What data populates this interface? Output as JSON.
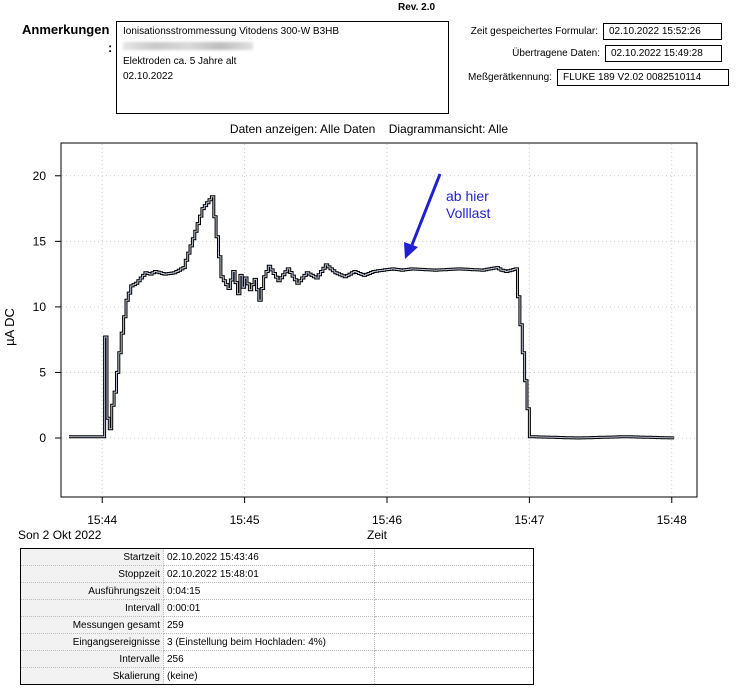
{
  "header": {
    "rev": "Rev. 2.0",
    "anmerkungen_label": "Anmerkungen",
    "anmerkungen_colon": ":",
    "notes": {
      "line1": "Ionisationsstrommessung Vitodens 300-W B3HB",
      "line3": "Elektroden ca. 5 Jahre alt",
      "line4": "02.10.2022"
    },
    "meta": [
      {
        "label": "Zeit gespeichertes Formular:",
        "value": "02.10.2022 15:52:26"
      },
      {
        "label": "Übertragene Daten:",
        "value": "02.10.2022 15:49:28"
      },
      {
        "label": "Meßgerätkennung:",
        "value": "FLUKE 189   V2.02  0082510114"
      }
    ]
  },
  "view": {
    "daten_label": "Daten anzeigen:",
    "daten_value": "Alle Daten",
    "ansicht_label": "Diagrammansicht:",
    "ansicht_value": "Alle"
  },
  "chart_data": {
    "type": "line",
    "ylabel": "µA DC",
    "xlabel": "Zeit",
    "date_label": "Son 2 Okt 2022",
    "ylim": [
      -4.5,
      22.5
    ],
    "yticks": [
      0,
      5,
      10,
      15,
      20
    ],
    "xlim": [
      "15:43:46",
      "15:48:06"
    ],
    "xticks": [
      "15:44",
      "15:45",
      "15:46",
      "15:47",
      "15:48"
    ],
    "annotation": {
      "text_line1": "ab hier",
      "text_line2": "Volllast",
      "color": "#1f1fd6"
    },
    "series": [
      {
        "x": [
          "15:43:46",
          "15:44:00",
          "15:44:01",
          "15:44:02",
          "15:44:03",
          "15:44:04",
          "15:44:05",
          "15:44:06",
          "15:44:08",
          "15:44:10",
          "15:44:12",
          "15:44:14",
          "15:44:16",
          "15:44:18",
          "15:44:20",
          "15:44:22",
          "15:44:26",
          "15:44:30",
          "15:44:34",
          "15:44:38",
          "15:44:42",
          "15:44:46",
          "15:44:50",
          "15:44:53",
          "15:44:55",
          "15:44:57",
          "15:44:58",
          "15:44:59",
          "15:45:00",
          "15:45:02",
          "15:45:04",
          "15:45:06",
          "15:45:08",
          "15:45:10",
          "15:45:14",
          "15:45:18",
          "15:45:22",
          "15:45:26",
          "15:45:30",
          "15:45:34",
          "15:45:38",
          "15:45:42",
          "15:45:46",
          "15:45:50",
          "15:45:54",
          "15:45:58",
          "15:46:02",
          "15:46:06",
          "15:46:10",
          "15:46:20",
          "15:46:30",
          "15:46:40",
          "15:46:46",
          "15:46:48",
          "15:46:50",
          "15:46:54",
          "15:47:00",
          "15:47:20",
          "15:47:40",
          "15:48:01"
        ],
        "y": [
          0.1,
          0.1,
          7.7,
          1.5,
          0.7,
          2.5,
          3.5,
          5.0,
          8.0,
          10.5,
          11.6,
          11.8,
          12.2,
          12.6,
          12.5,
          12.7,
          12.5,
          12.6,
          13.0,
          15.2,
          17.5,
          18.4,
          12.3,
          11.4,
          12.7,
          11.0,
          12.4,
          11.5,
          12.2,
          11.3,
          12.1,
          10.5,
          12.3,
          13.1,
          12.0,
          12.9,
          11.8,
          12.6,
          12.2,
          13.2,
          12.6,
          12.3,
          12.7,
          12.4,
          12.7,
          12.8,
          12.9,
          12.8,
          12.9,
          12.8,
          12.9,
          12.8,
          13.0,
          12.8,
          12.7,
          12.9,
          0.1,
          0.0,
          0.1,
          0.0
        ]
      }
    ]
  },
  "info_table": [
    {
      "key": "Startzeit",
      "value": "02.10.2022 15:43:46"
    },
    {
      "key": "Stoppzeit",
      "value": "02.10.2022 15:48:01"
    },
    {
      "key": "Ausführungszeit",
      "value": "0:04:15"
    },
    {
      "key": "Intervall",
      "value": "0:00:01"
    },
    {
      "key": "Messungen gesamt",
      "value": "259"
    },
    {
      "key": "Eingangsereignisse",
      "value": "3   (Einstellung beim Hochladen: 4%)"
    },
    {
      "key": "Intervalle",
      "value": "256"
    },
    {
      "key": "Skalierung",
      "value": "(keine)"
    }
  ]
}
